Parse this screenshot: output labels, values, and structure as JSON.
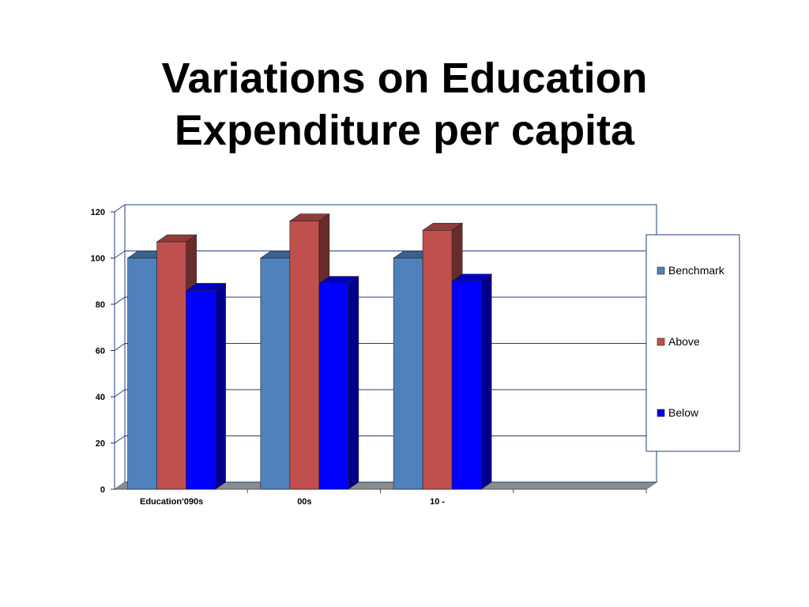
{
  "slide": {
    "title_line1": "Variations on Education",
    "title_line2": "Expenditure per capita"
  },
  "chart_data": {
    "type": "bar",
    "title": "",
    "xlabel": "",
    "ylabel": "",
    "categories": [
      "Education'090s",
      "00s",
      "10 -",
      ""
    ],
    "series": [
      {
        "name": "Benchmark",
        "color": "#4f81bd",
        "values": [
          100,
          100,
          100,
          null
        ]
      },
      {
        "name": "Above",
        "color": "#c0504d",
        "values": [
          107,
          116,
          112,
          null
        ]
      },
      {
        "name": "Below",
        "color": "#0000ff",
        "values": [
          86,
          89,
          90,
          null
        ]
      }
    ],
    "ylim": [
      0,
      120
    ],
    "yticks": [
      0,
      20,
      40,
      60,
      80,
      100,
      120
    ],
    "grid": true,
    "legend_position": "right",
    "three_d": true
  }
}
